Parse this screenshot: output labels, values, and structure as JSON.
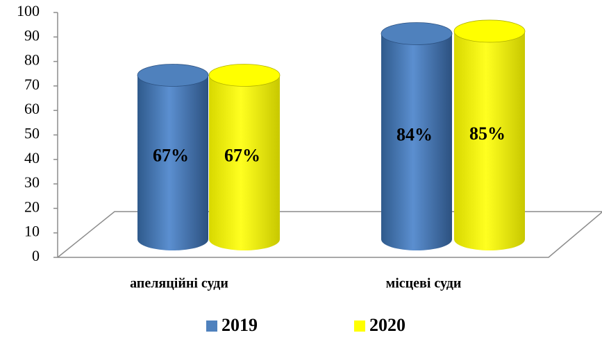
{
  "chart_data": {
    "type": "bar",
    "categories": [
      "апеляційні суди",
      "місцеві суди"
    ],
    "series": [
      {
        "name": "2019",
        "color": "#4f81bd",
        "values": [
          67,
          84
        ],
        "value_labels": [
          "67%",
          "84%"
        ]
      },
      {
        "name": "2020",
        "color": "#ffff00",
        "values": [
          67,
          85
        ],
        "value_labels": [
          "67%",
          "85%"
        ]
      }
    ],
    "ylim": [
      0,
      100
    ],
    "yticks": [
      0,
      10,
      20,
      30,
      40,
      50,
      60,
      70,
      80,
      90,
      100
    ]
  }
}
